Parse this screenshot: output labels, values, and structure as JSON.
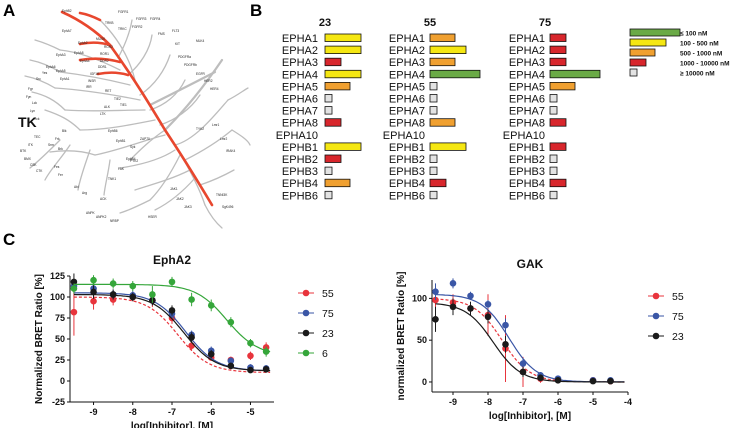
{
  "panels": {
    "A": {
      "letter": "A",
      "group_label": "TK",
      "kinase_labels": [
        "FGFR1",
        "FGFR3",
        "EphB2",
        "TRKB",
        "TRKC",
        "FGFR2",
        "FGFR4",
        "FMS",
        "FLT3",
        "KIT",
        "PDGFRa",
        "PDGFRb",
        "EphA7",
        "MUSK",
        "ROR2",
        "ROR1",
        "DDR2",
        "DDR1",
        "IGF1R",
        "INSR",
        "IRR",
        "RET",
        "TIE2",
        "TIE1",
        "ALK",
        "LTK",
        "EphA4",
        "EphA2",
        "EphA8",
        "EphA3",
        "EphA5",
        "EphA1",
        "EphA6",
        "Yes",
        "Src",
        "Fgr",
        "Fyn",
        "Lck",
        "Lyn",
        "Hck",
        "Blk",
        "Frk",
        "Srm",
        "Brk",
        "TEC",
        "ITK",
        "BTK",
        "BMX",
        "CSK",
        "CTK",
        "Fes",
        "Fer",
        "Abl",
        "Arg",
        "ACK",
        "TNK1",
        "FAK",
        "PYK2",
        "Syk",
        "ZAP70",
        "EGFR",
        "HER2",
        "HER4",
        "JAK1",
        "JAK2",
        "JAK3",
        "TYK2",
        "Lmr1",
        "Lmr2",
        "IRAK4",
        "MLK4",
        "TNNI3K",
        "SgK496",
        "ANPK",
        "ANPK2",
        "NRBP",
        "HSER",
        "EphB4",
        "EphB1",
        "EphB6"
      ]
    },
    "B": {
      "letter": "B"
    },
    "C": {
      "letter": "C"
    }
  },
  "selectivity": {
    "compounds": [
      "23",
      "55",
      "75"
    ],
    "targets": [
      "EPHA1",
      "EPHA2",
      "EPHA3",
      "EPHA4",
      "EPHA5",
      "EPHA6",
      "EPHA7",
      "EPHA8",
      "EPHA10",
      "EPHB1",
      "EPHB2",
      "EPHB3",
      "EPHB4",
      "EPHB6"
    ],
    "bins": [
      {
        "label": "≤ 100 nM",
        "color": "#6aaa46",
        "length": 1.0
      },
      {
        "label": "100 - 500 nM",
        "color": "#f5e712",
        "length": 0.72
      },
      {
        "label": "500 - 1000 nM",
        "color": "#f0a030",
        "length": 0.5
      },
      {
        "label": "1000 - 10000 nM",
        "color": "#d8262c",
        "length": 0.32
      },
      {
        "label": "≥ 10000 nM",
        "color": "#e3e3e3",
        "length": 0.14
      }
    ],
    "matrix": [
      [
        1,
        2,
        3
      ],
      [
        1,
        1,
        3
      ],
      [
        3,
        2,
        3
      ],
      [
        1,
        0,
        0
      ],
      [
        2,
        4,
        2
      ],
      [
        4,
        4,
        4
      ],
      [
        4,
        4,
        4
      ],
      [
        3,
        2,
        3
      ],
      [
        5,
        5,
        5
      ],
      [
        1,
        1,
        3
      ],
      [
        3,
        4,
        4
      ],
      [
        4,
        4,
        4
      ],
      [
        2,
        3,
        3
      ],
      [
        4,
        4,
        4
      ]
    ]
  },
  "chart_data": [
    {
      "type": "scatter",
      "title": "EphA2",
      "xlabel": "log[Inhibitor], [M]",
      "ylabel": "Normalized BRET Ratio [%]",
      "xlim": [
        -9.6,
        -4.4
      ],
      "ylim": [
        -25,
        125
      ],
      "xticks": [
        -9,
        -8,
        -7,
        -6,
        -5
      ],
      "yticks": [
        -25,
        0,
        25,
        50,
        75,
        100,
        125
      ],
      "series": [
        {
          "name": "55",
          "color": "#e8343c",
          "x": [
            -9.5,
            -9.0,
            -8.5,
            -8.0,
            -7.5,
            -7.0,
            -6.5,
            -6.0,
            -5.5,
            -5.0,
            -4.6
          ],
          "y": [
            82,
            95,
            97,
            100,
            96,
            75,
            42,
            28,
            25,
            30,
            40
          ],
          "err": [
            28,
            10,
            7,
            5,
            8,
            7,
            6,
            4,
            4,
            5,
            6
          ],
          "ic50": -6.85,
          "top": 100,
          "bottom": 10
        },
        {
          "name": "75",
          "color": "#3a56a6",
          "x": [
            -9.5,
            -9.0,
            -8.5,
            -8.0,
            -7.5,
            -7.0,
            -6.5,
            -6.0,
            -5.5,
            -5.0,
            -4.6
          ],
          "y": [
            113,
            110,
            103,
            102,
            96,
            80,
            55,
            36,
            24,
            16,
            15
          ],
          "err": [
            8,
            8,
            6,
            5,
            6,
            6,
            5,
            5,
            4,
            4,
            4
          ],
          "ic50": -6.65,
          "top": 105,
          "bottom": 12
        },
        {
          "name": "23",
          "color": "#1a1a1a",
          "x": [
            -9.5,
            -9.0,
            -8.5,
            -8.0,
            -7.5,
            -7.0,
            -6.5,
            -6.0,
            -5.5,
            -5.0,
            -4.6
          ],
          "y": [
            118,
            106,
            103,
            100,
            96,
            84,
            52,
            32,
            18,
            13,
            14
          ],
          "err": [
            10,
            8,
            6,
            5,
            6,
            6,
            6,
            5,
            4,
            3,
            4
          ],
          "ic50": -6.7,
          "top": 103,
          "bottom": 12
        },
        {
          "name": "6",
          "color": "#35a63a",
          "x": [
            -9.5,
            -9.0,
            -8.5,
            -8.0,
            -7.5,
            -7.0,
            -6.5,
            -6.0,
            -5.5,
            -5.0,
            -4.6
          ],
          "y": [
            110,
            120,
            116,
            113,
            103,
            118,
            97,
            90,
            70,
            45,
            35
          ],
          "err": [
            6,
            6,
            6,
            6,
            10,
            6,
            8,
            7,
            6,
            5,
            6
          ],
          "ic50": -5.6,
          "top": 115,
          "bottom": 30
        }
      ]
    },
    {
      "type": "scatter",
      "title": "GAK",
      "xlabel": "log[Inhibitor], [M]",
      "ylabel": "normalized BRET Ratio [%]",
      "xlim": [
        -9.6,
        -4.0
      ],
      "ylim": [
        -12,
        122
      ],
      "xticks": [
        -9,
        -8,
        -7,
        -6,
        -5,
        -4
      ],
      "yticks": [
        0,
        50,
        100
      ],
      "series": [
        {
          "name": "55",
          "color": "#e8343c",
          "x": [
            -9.5,
            -9.0,
            -8.5,
            -8.0,
            -7.5,
            -7.0,
            -6.5,
            -6.0,
            -5.0,
            -4.5
          ],
          "y": [
            98,
            95,
            88,
            80,
            40,
            12,
            4,
            3,
            2,
            1
          ],
          "err": [
            12,
            10,
            8,
            25,
            40,
            18,
            5,
            4,
            3,
            3
          ],
          "ic50": -7.6,
          "top": 100,
          "bottom": 0
        },
        {
          "name": "75",
          "color": "#3a56a6",
          "x": [
            -9.5,
            -9.0,
            -8.5,
            -8.0,
            -7.5,
            -7.0,
            -6.5,
            -6.0,
            -5.0,
            -4.5
          ],
          "y": [
            108,
            118,
            103,
            93,
            68,
            22,
            8,
            4,
            2,
            2
          ],
          "err": [
            10,
            6,
            5,
            5,
            8,
            6,
            4,
            3,
            3,
            2
          ],
          "ic50": -7.4,
          "top": 105,
          "bottom": 0
        },
        {
          "name": "23",
          "color": "#1a1a1a",
          "x": [
            -9.5,
            -9.0,
            -8.5,
            -8.0,
            -7.5,
            -7.0,
            -6.5,
            -6.0,
            -5.0,
            -4.5
          ],
          "y": [
            75,
            90,
            88,
            78,
            45,
            12,
            5,
            2,
            1,
            1
          ],
          "err": [
            15,
            10,
            8,
            8,
            10,
            6,
            4,
            3,
            3,
            2
          ],
          "ic50": -7.85,
          "top": 95,
          "bottom": 0
        }
      ]
    }
  ]
}
